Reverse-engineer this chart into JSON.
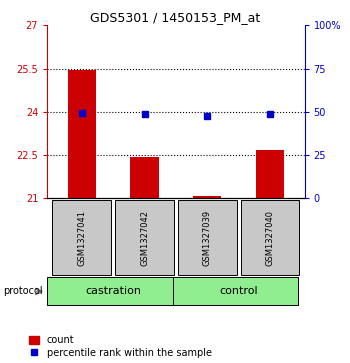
{
  "title": "GDS5301 / 1450153_PM_at",
  "samples": [
    "GSM1327041",
    "GSM1327042",
    "GSM1327039",
    "GSM1327040"
  ],
  "groups": [
    "castration",
    "castration",
    "control",
    "control"
  ],
  "bar_values": [
    25.45,
    22.42,
    21.05,
    22.65
  ],
  "percentile_values": [
    23.95,
    23.9,
    23.85,
    23.9
  ],
  "ylim_left": [
    21,
    27
  ],
  "ylim_right": [
    0,
    100
  ],
  "yticks_left": [
    21,
    22.5,
    24,
    25.5,
    27
  ],
  "yticks_right": [
    0,
    25,
    50,
    75,
    100
  ],
  "ytick_labels_left": [
    "21",
    "22.5",
    "24",
    "25.5",
    "27"
  ],
  "ytick_labels_right": [
    "0",
    "25",
    "50",
    "75",
    "100%"
  ],
  "hlines": [
    25.5,
    24,
    22.5
  ],
  "bar_color": "#CC0000",
  "dot_color": "#0000CC",
  "sample_box_color": "#C8C8C8",
  "protocol_box_color": "#90EE90",
  "protocol_label": "protocol",
  "legend_count_label": "count",
  "legend_pct_label": "percentile rank within the sample",
  "title_fontsize": 9,
  "tick_fontsize": 7,
  "sample_fontsize": 6,
  "protocol_fontsize": 7,
  "legend_fontsize": 7,
  "protocol_text_fontsize": 8
}
